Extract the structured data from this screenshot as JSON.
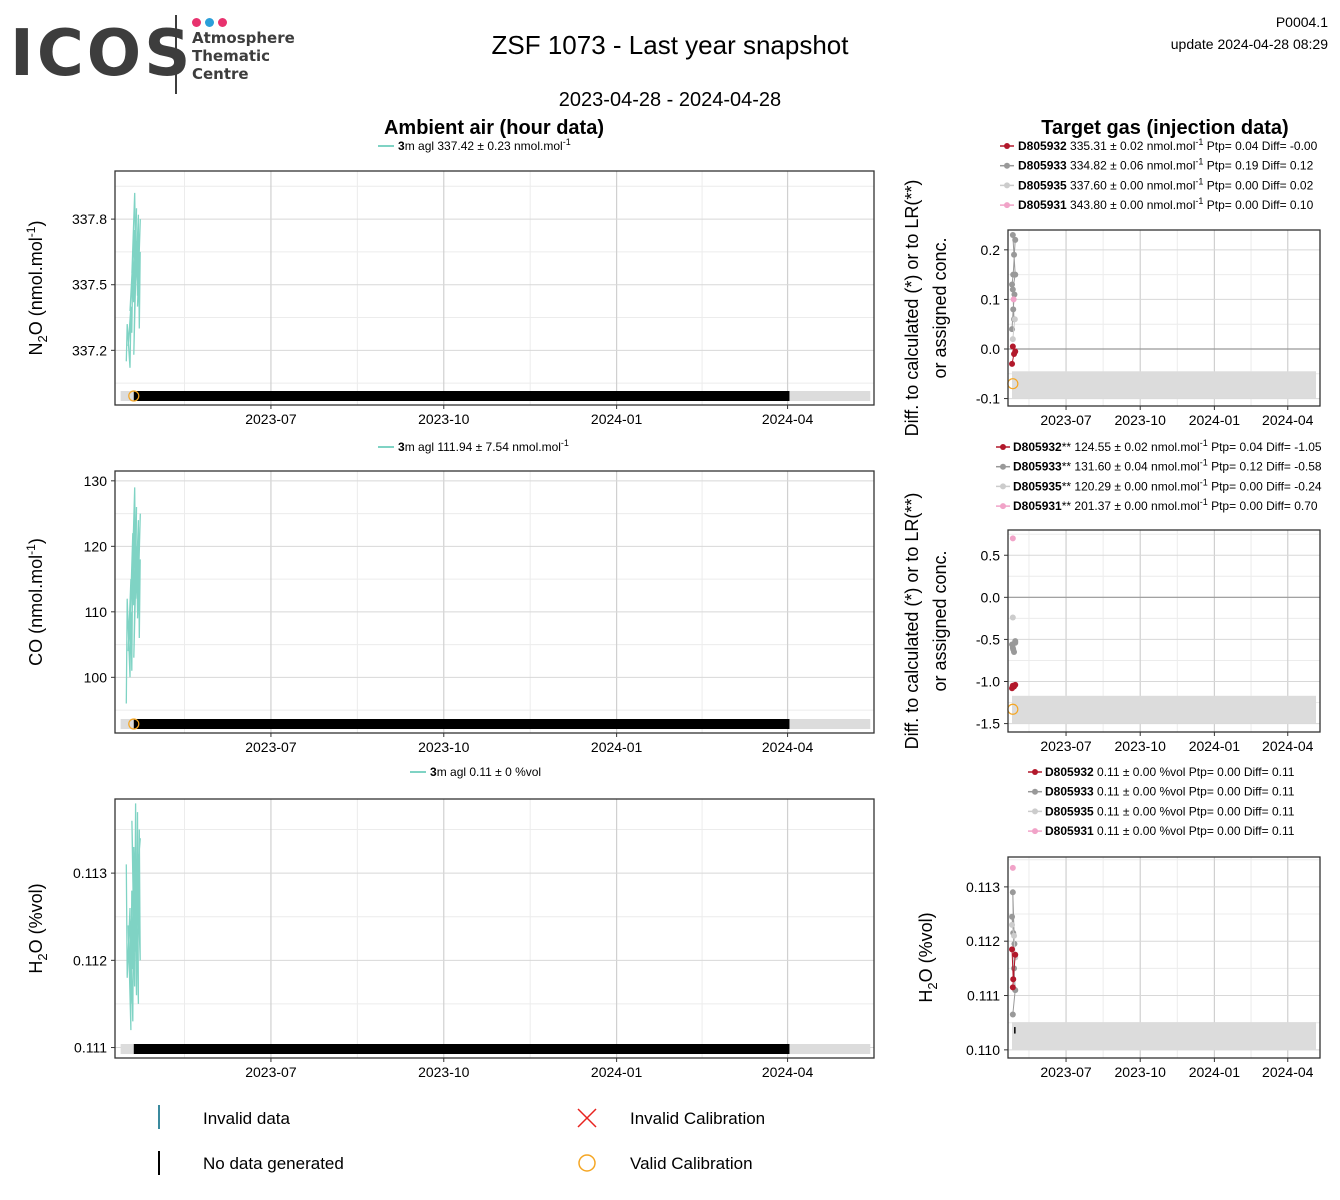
{
  "header": {
    "logo_text": "ICOS",
    "logo_sub": [
      "Atmosphere",
      "Thematic",
      "Centre"
    ],
    "logo_dot_colors": [
      "#e8326e",
      "#2b9fd9",
      "#e8326e"
    ],
    "title": "ZSF 1073 - Last year snapshot",
    "date_range": "2023-04-28 - 2024-04-28",
    "version": "P0004.1",
    "update": "update  2024-04-28 08:29"
  },
  "sections": {
    "ambient_title": "Ambient air (hour data)",
    "target_title": "Target gas (injection data)"
  },
  "colors": {
    "ambient_line": "#7fd3c4",
    "D805932": "#b2182b",
    "D805933": "#999999",
    "D805935": "#cccccc",
    "D805931": "#f1a3c8",
    "calibration": "#f5a623",
    "invalid_cal": "#e8231f",
    "invalid_data": "#3b8a9e",
    "nodata_bar": "#000000",
    "shade": "#dcdcdc"
  },
  "legend": {
    "invalid_data": "Invalid data",
    "no_data": "No data generated",
    "invalid_calibration": "Invalid Calibration",
    "valid_calibration": "Valid Calibration"
  },
  "chart_data": [
    {
      "id": "ambient-n2o",
      "type": "line",
      "ylabel": "N2O (nmol.mol-1)",
      "ylabel_parts": {
        "main": "N",
        "sub": "2",
        "rest": "O (nmol.mol",
        "sup": "-1",
        "end": ")"
      },
      "legend_label": {
        "bold": "3",
        "rest": "m agl 337.42 ± 0.23 nmol.mol",
        "sup": "-1"
      },
      "xticks": [
        "2023-07",
        "2023-10",
        "2024-01",
        "2024-04"
      ],
      "xtick_dates": [
        "2023-07-01",
        "2023-10-01",
        "2024-01-01",
        "2024-04-01"
      ],
      "xlim": [
        "2023-04-09",
        "2024-05-17"
      ],
      "ylim": [
        336.95,
        338.02
      ],
      "yticks": [
        337.2,
        337.5,
        337.8
      ],
      "ytick_labels": [
        "337.2",
        "337.5",
        "337.8"
      ],
      "series": [
        {
          "x": [
            "2023-04-15",
            "2023-04-15",
            "2023-04-16",
            "2023-04-16",
            "2023-04-16",
            "2023-04-17",
            "2023-04-17",
            "2023-04-17",
            "2023-04-17",
            "2023-04-18",
            "2023-04-18",
            "2023-04-18",
            "2023-04-18",
            "2023-04-19",
            "2023-04-19",
            "2023-04-19",
            "2023-04-19",
            "2023-04-20",
            "2023-04-20",
            "2023-04-20",
            "2023-04-20",
            "2023-04-21",
            "2023-04-21",
            "2023-04-21",
            "2023-04-21",
            "2023-04-22"
          ],
          "y": [
            337.15,
            337.32,
            337.12,
            337.36,
            337.22,
            337.4,
            337.28,
            337.55,
            337.38,
            337.62,
            337.42,
            337.75,
            337.55,
            337.92,
            337.6,
            337.85,
            337.18,
            337.7,
            337.45,
            337.82,
            337.52,
            337.78,
            337.3,
            337.65,
            337.4,
            337.8
          ]
        }
      ],
      "no_data_span": [
        "2023-04-19",
        "2024-04-02"
      ],
      "shade_span": [
        "2023-04-12",
        "2024-05-15"
      ],
      "calibration": [
        {
          "x": "2023-04-19"
        }
      ]
    },
    {
      "id": "ambient-co",
      "type": "line",
      "ylabel": "CO (nmol.mol-1)",
      "ylabel_parts": {
        "main": "CO (nmol.mol",
        "sup": "-1",
        "end": ")"
      },
      "legend_label": {
        "bold": "3",
        "rest": "m agl 111.94 ± 7.54 nmol.mol",
        "sup": "-1"
      },
      "xticks": [
        "2023-07",
        "2023-10",
        "2024-01",
        "2024-04"
      ],
      "xtick_dates": [
        "2023-07-01",
        "2023-10-01",
        "2024-01-01",
        "2024-04-01"
      ],
      "xlim": [
        "2023-04-09",
        "2024-05-17"
      ],
      "ylim": [
        91.5,
        131.5
      ],
      "yticks": [
        100,
        110,
        120,
        130
      ],
      "ytick_labels": [
        "100",
        "110",
        "120",
        "130"
      ],
      "series": [
        {
          "x": [
            "2023-04-15",
            "2023-04-15",
            "2023-04-16",
            "2023-04-16",
            "2023-04-16",
            "2023-04-17",
            "2023-04-17",
            "2023-04-17",
            "2023-04-17",
            "2023-04-18",
            "2023-04-18",
            "2023-04-18",
            "2023-04-18",
            "2023-04-19",
            "2023-04-19",
            "2023-04-19",
            "2023-04-19",
            "2023-04-20",
            "2023-04-20",
            "2023-04-20",
            "2023-04-20",
            "2023-04-21",
            "2023-04-21",
            "2023-04-21",
            "2023-04-21",
            "2023-04-22"
          ],
          "y": [
            96,
            112,
            100,
            115,
            104,
            110,
            101,
            118,
            108,
            122,
            111,
            125,
            114,
            129,
            113,
            126,
            103,
            120,
            110,
            124,
            112,
            123,
            106,
            118,
            109,
            125
          ]
        }
      ],
      "no_data_span": [
        "2023-04-19",
        "2024-04-02"
      ],
      "shade_span": [
        "2023-04-12",
        "2024-05-15"
      ],
      "calibration": [
        {
          "x": "2023-04-19"
        }
      ]
    },
    {
      "id": "ambient-h2o",
      "type": "line",
      "ylabel": "H2O (%vol)",
      "ylabel_parts": {
        "main": "H",
        "sub": "2",
        "rest": "O (%vol)"
      },
      "legend_label": {
        "bold": "3",
        "rest": "m agl 0.11 ± 0 %vol"
      },
      "xticks": [
        "2023-07",
        "2023-10",
        "2024-01",
        "2024-04"
      ],
      "xtick_dates": [
        "2023-07-01",
        "2023-10-01",
        "2024-01-01",
        "2024-04-01"
      ],
      "xlim": [
        "2023-04-09",
        "2024-05-17"
      ],
      "ylim": [
        0.11088,
        0.11385
      ],
      "yticks": [
        0.111,
        0.112,
        0.113
      ],
      "ytick_labels": [
        "0.111",
        "0.112",
        "0.113"
      ],
      "series": [
        {
          "x": [
            "2023-04-15",
            "2023-04-15",
            "2023-04-16",
            "2023-04-16",
            "2023-04-16",
            "2023-04-17",
            "2023-04-17",
            "2023-04-17",
            "2023-04-17",
            "2023-04-18",
            "2023-04-18",
            "2023-04-18",
            "2023-04-18",
            "2023-04-19",
            "2023-04-19",
            "2023-04-19",
            "2023-04-19",
            "2023-04-20",
            "2023-04-20",
            "2023-04-20",
            "2023-04-20",
            "2023-04-21",
            "2023-04-21",
            "2023-04-21",
            "2023-04-21",
            "2023-04-22"
          ],
          "y": [
            0.1131,
            0.1118,
            0.1126,
            0.1112,
            0.1124,
            0.1115,
            0.1128,
            0.1119,
            0.1125,
            0.1113,
            0.113,
            0.1117,
            0.1136,
            0.1121,
            0.1138,
            0.1116,
            0.1133,
            0.1122,
            0.1137,
            0.1115,
            0.1129,
            0.1124,
            0.1135,
            0.112,
            0.113,
            0.1134
          ]
        }
      ],
      "no_data_span": [
        "2023-04-19",
        "2024-04-02"
      ],
      "shade_span": [
        "2023-04-12",
        "2024-05-15"
      ],
      "calibration": []
    },
    {
      "id": "target-n2o",
      "type": "scatter",
      "ylabel_lines": [
        "Diff. to calculated (*) or to LR(**)",
        "or assigned conc."
      ],
      "legend_rows": [
        {
          "name": "D805932",
          "suffix": "",
          "text": " 335.31 ± 0.02 nmol.mol",
          "sup": "-1",
          "tail": " Ptp= 0.04 Diff= -0.00"
        },
        {
          "name": "D805933",
          "suffix": "",
          "text": " 334.82 ± 0.06 nmol.mol",
          "sup": "-1",
          "tail": " Ptp= 0.19 Diff= 0.12"
        },
        {
          "name": "D805935",
          "suffix": "",
          "text": " 337.60 ± 0.00 nmol.mol",
          "sup": "-1",
          "tail": " Ptp= 0.00 Diff= 0.02"
        },
        {
          "name": "D805931",
          "suffix": "",
          "text": " 343.80 ± 0.00 nmol.mol",
          "sup": "-1",
          "tail": " Ptp= 0.00 Diff= 0.10"
        }
      ],
      "xticks": [
        "2023-07",
        "2023-10",
        "2024-01",
        "2024-04"
      ],
      "xtick_dates": [
        "2023-07-01",
        "2023-10-01",
        "2024-01-01",
        "2024-04-01"
      ],
      "xlim": [
        "2023-04-20",
        "2024-05-11"
      ],
      "ylim": [
        -0.115,
        0.24
      ],
      "yticks": [
        -0.1,
        0.0,
        0.1,
        0.2
      ],
      "ytick_labels": [
        "-0.1",
        "0.0",
        "0.1",
        "0.2"
      ],
      "zero_line": true,
      "shade": [
        -0.1,
        -0.045
      ],
      "series": [
        {
          "name": "D805933",
          "x": [
            "2023-04-25",
            "2023-04-25",
            "2023-04-25",
            "2023-04-25",
            "2023-04-25",
            "2023-04-26",
            "2023-04-26",
            "2023-04-26",
            "2023-04-26",
            "2023-04-26",
            "2023-04-26"
          ],
          "y": [
            0.04,
            0.08,
            0.11,
            0.13,
            0.15,
            0.22,
            0.23,
            0.19,
            0.15,
            0.12,
            0.06
          ]
        },
        {
          "name": "D805935",
          "x": [
            "2023-04-26",
            "2023-04-27"
          ],
          "y": [
            0.02,
            0.06
          ]
        },
        {
          "name": "D805931",
          "x": [
            "2023-04-27"
          ],
          "y": [
            0.1
          ]
        },
        {
          "name": "D805932",
          "x": [
            "2023-04-25",
            "2023-04-26",
            "2023-04-26",
            "2023-04-26"
          ],
          "y": [
            -0.03,
            -0.01,
            -0.005,
            0.005
          ]
        }
      ],
      "calibration": [
        {
          "x": "2023-04-26",
          "y": -0.07
        }
      ]
    },
    {
      "id": "target-co",
      "type": "scatter",
      "ylabel_lines": [
        "Diff. to calculated (*) or to LR(**)",
        "or assigned conc."
      ],
      "legend_rows": [
        {
          "name": "D805932",
          "suffix": "**",
          "text": " 124.55 ± 0.02 nmol.mol",
          "sup": "-1",
          "tail": " Ptp= 0.04 Diff= -1.05"
        },
        {
          "name": "D805933",
          "suffix": "**",
          "text": " 131.60 ± 0.04 nmol.mol",
          "sup": "-1",
          "tail": " Ptp= 0.12 Diff= -0.58"
        },
        {
          "name": "D805935",
          "suffix": "**",
          "text": " 120.29 ± 0.00 nmol.mol",
          "sup": "-1",
          "tail": " Ptp= 0.00 Diff= -0.24"
        },
        {
          "name": "D805931",
          "suffix": "**",
          "text": " 201.37 ± 0.00 nmol.mol",
          "sup": "-1",
          "tail": " Ptp= 0.00 Diff= 0.70"
        }
      ],
      "xticks": [
        "2023-07",
        "2023-10",
        "2024-01",
        "2024-04"
      ],
      "xtick_dates": [
        "2023-07-01",
        "2023-10-01",
        "2024-01-01",
        "2024-04-01"
      ],
      "xlim": [
        "2023-04-20",
        "2024-05-11"
      ],
      "ylim": [
        -1.6,
        0.8
      ],
      "yticks": [
        -1.5,
        -1.0,
        -0.5,
        0.0,
        0.5
      ],
      "ytick_labels": [
        "-1.5",
        "-1.0",
        "-0.5",
        "0.0",
        "0.5"
      ],
      "zero_line": true,
      "shade": [
        -1.5,
        -1.17
      ],
      "series": [
        {
          "name": "D805933",
          "x": [
            "2023-04-25",
            "2023-04-25",
            "2023-04-26",
            "2023-04-26",
            "2023-04-26",
            "2023-04-26"
          ],
          "y": [
            -0.56,
            -0.62,
            -0.54,
            -0.6,
            -0.65,
            -0.52
          ]
        },
        {
          "name": "D805935",
          "x": [
            "2023-04-26"
          ],
          "y": [
            -0.24
          ]
        },
        {
          "name": "D805931",
          "x": [
            "2023-04-26"
          ],
          "y": [
            0.7
          ]
        },
        {
          "name": "D805932",
          "x": [
            "2023-04-25",
            "2023-04-26",
            "2023-04-26",
            "2023-04-26"
          ],
          "y": [
            -1.08,
            -1.06,
            -1.04,
            -1.05
          ]
        }
      ],
      "calibration": [
        {
          "x": "2023-04-26",
          "y": -1.33
        }
      ]
    },
    {
      "id": "target-h2o",
      "type": "scatter",
      "ylabel": "H2O (%vol)",
      "ylabel_parts": {
        "main": "H",
        "sub": "2",
        "rest": "O (%vol)"
      },
      "legend_rows": [
        {
          "name": "D805932",
          "suffix": "",
          "text": " 0.11 ± 0.00 %vol Ptp= 0.00 Diff= 0.11"
        },
        {
          "name": "D805933",
          "suffix": "",
          "text": " 0.11 ± 0.00 %vol Ptp= 0.00 Diff= 0.11"
        },
        {
          "name": "D805935",
          "suffix": "",
          "text": " 0.11 ± 0.00 %vol Ptp= 0.00 Diff= 0.11"
        },
        {
          "name": "D805931",
          "suffix": "",
          "text": " 0.11 ± 0.00 %vol Ptp= 0.00 Diff= 0.11"
        }
      ],
      "xticks": [
        "2023-07",
        "2023-10",
        "2024-01",
        "2024-04"
      ],
      "xtick_dates": [
        "2023-07-01",
        "2023-10-01",
        "2024-01-01",
        "2024-04-01"
      ],
      "xlim": [
        "2023-04-20",
        "2024-05-11"
      ],
      "ylim": [
        0.10985,
        0.11355
      ],
      "yticks": [
        0.11,
        0.111,
        0.112,
        0.113
      ],
      "ytick_labels": [
        "0.110",
        "0.111",
        "0.112",
        "0.113"
      ],
      "zero_line": false,
      "shade": [
        0.11,
        0.11051
      ],
      "series": [
        {
          "name": "D805933",
          "x": [
            "2023-04-25",
            "2023-04-25",
            "2023-04-25",
            "2023-04-26",
            "2023-04-26",
            "2023-04-26",
            "2023-04-26"
          ],
          "y": [
            0.11245,
            0.11215,
            0.11195,
            0.1129,
            0.1115,
            0.1111,
            0.11065
          ]
        },
        {
          "name": "D805935",
          "x": [
            "2023-04-25",
            "2023-04-26",
            "2023-04-26"
          ],
          "y": [
            0.1123,
            0.1121,
            0.1117
          ]
        },
        {
          "name": "D805931",
          "x": [
            "2023-04-26"
          ],
          "y": [
            0.11335
          ]
        },
        {
          "name": "D805932",
          "x": [
            "2023-04-25",
            "2023-04-25",
            "2023-04-26",
            "2023-04-26"
          ],
          "y": [
            0.11185,
            0.1113,
            0.11175,
            0.11115
          ]
        }
      ],
      "calibration": [],
      "nodata_tick": {
        "x": "2023-04-26",
        "y": [
          0.1103,
          0.11042
        ]
      }
    }
  ]
}
